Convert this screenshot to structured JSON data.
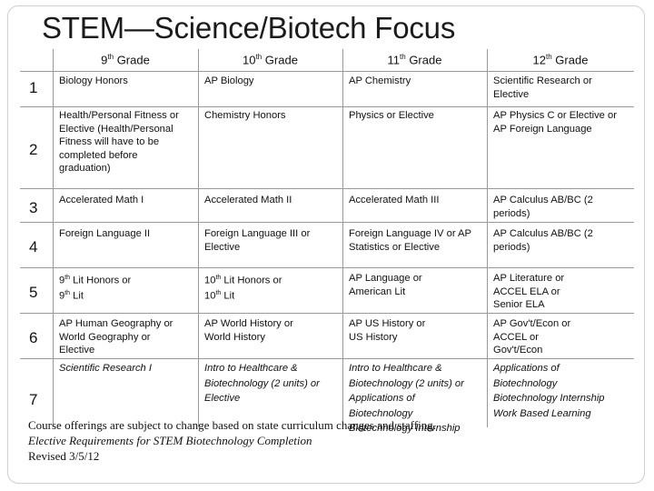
{
  "slide": {
    "title": "STEM—Science/Biotech Focus"
  },
  "table": {
    "headers": [
      {
        "num": "9",
        "sup": "th",
        "rest": " Grade"
      },
      {
        "num": "10",
        "sup": "th",
        "rest": " Grade"
      },
      {
        "num": "11",
        "sup": "th",
        "rest": " Grade"
      },
      {
        "num": "12",
        "sup": "th",
        "rest": " Grade"
      }
    ],
    "rows": [
      {
        "num": "1",
        "cells": [
          "Biology Honors",
          "AP Biology",
          "AP Chemistry",
          "Scientific Research or\nElective"
        ]
      },
      {
        "num": "2",
        "cells": [
          "Health/Personal Fitness or\nElective (Health/Personal\nFitness will have to be\ncompleted before\ngraduation)",
          "Chemistry Honors",
          "Physics or Elective",
          "AP Physics C or Elective or\nAP Foreign Language"
        ]
      },
      {
        "num": "3",
        "cells": [
          "Accelerated Math I",
          "Accelerated Math II",
          "Accelerated Math III",
          "AP Calculus AB/BC (2\nperiods)"
        ]
      },
      {
        "num": "4",
        "cells": [
          "Foreign Language II",
          "Foreign Language III or\nElective",
          "Foreign Language IV or AP\nStatistics or Elective",
          "AP Calculus AB/BC (2\nperiods)"
        ]
      },
      {
        "num": "5",
        "cells": [
          {
            "a_num": "9",
            "a_sup": "th",
            "a_rest": " Lit Honors or",
            "b_num": "9",
            "b_sup": "th",
            "b_rest": " Lit"
          },
          {
            "a_num": "10",
            "a_sup": "th",
            "a_rest": " Lit Honors or",
            "b_num": "10",
            "b_sup": "th",
            "b_rest": " Lit"
          },
          "AP Language or\nAmerican Lit",
          "AP Literature or\nACCEL ELA or\nSenior ELA"
        ]
      },
      {
        "num": "6",
        "cells": [
          "AP Human Geography or\nWorld Geography or\nElective",
          "AP World History or\n World History",
          "AP US History or\nUS History",
          "AP Gov't/Econ or\nACCEL or\nGov't/Econ"
        ]
      },
      {
        "num": "7",
        "cells": [
          "Scientific Research I",
          "Intro to Healthcare &\nBiotechnology (2 units) or\nElective",
          "Intro to Healthcare &\nBiotechnology (2 units) or\nApplications of\nBiotechnology\nBiotechnology Internship",
          "Applications of\nBiotechnology\nBiotechnology Internship\nWork Based Learning"
        ]
      }
    ]
  },
  "footer": {
    "note": "Course offerings are subject to change based on state curriculum changes and staffing.",
    "subtitle": "Elective Requirements for STEM Biotechnology Completion",
    "revised": "Revised 3/5/12"
  }
}
